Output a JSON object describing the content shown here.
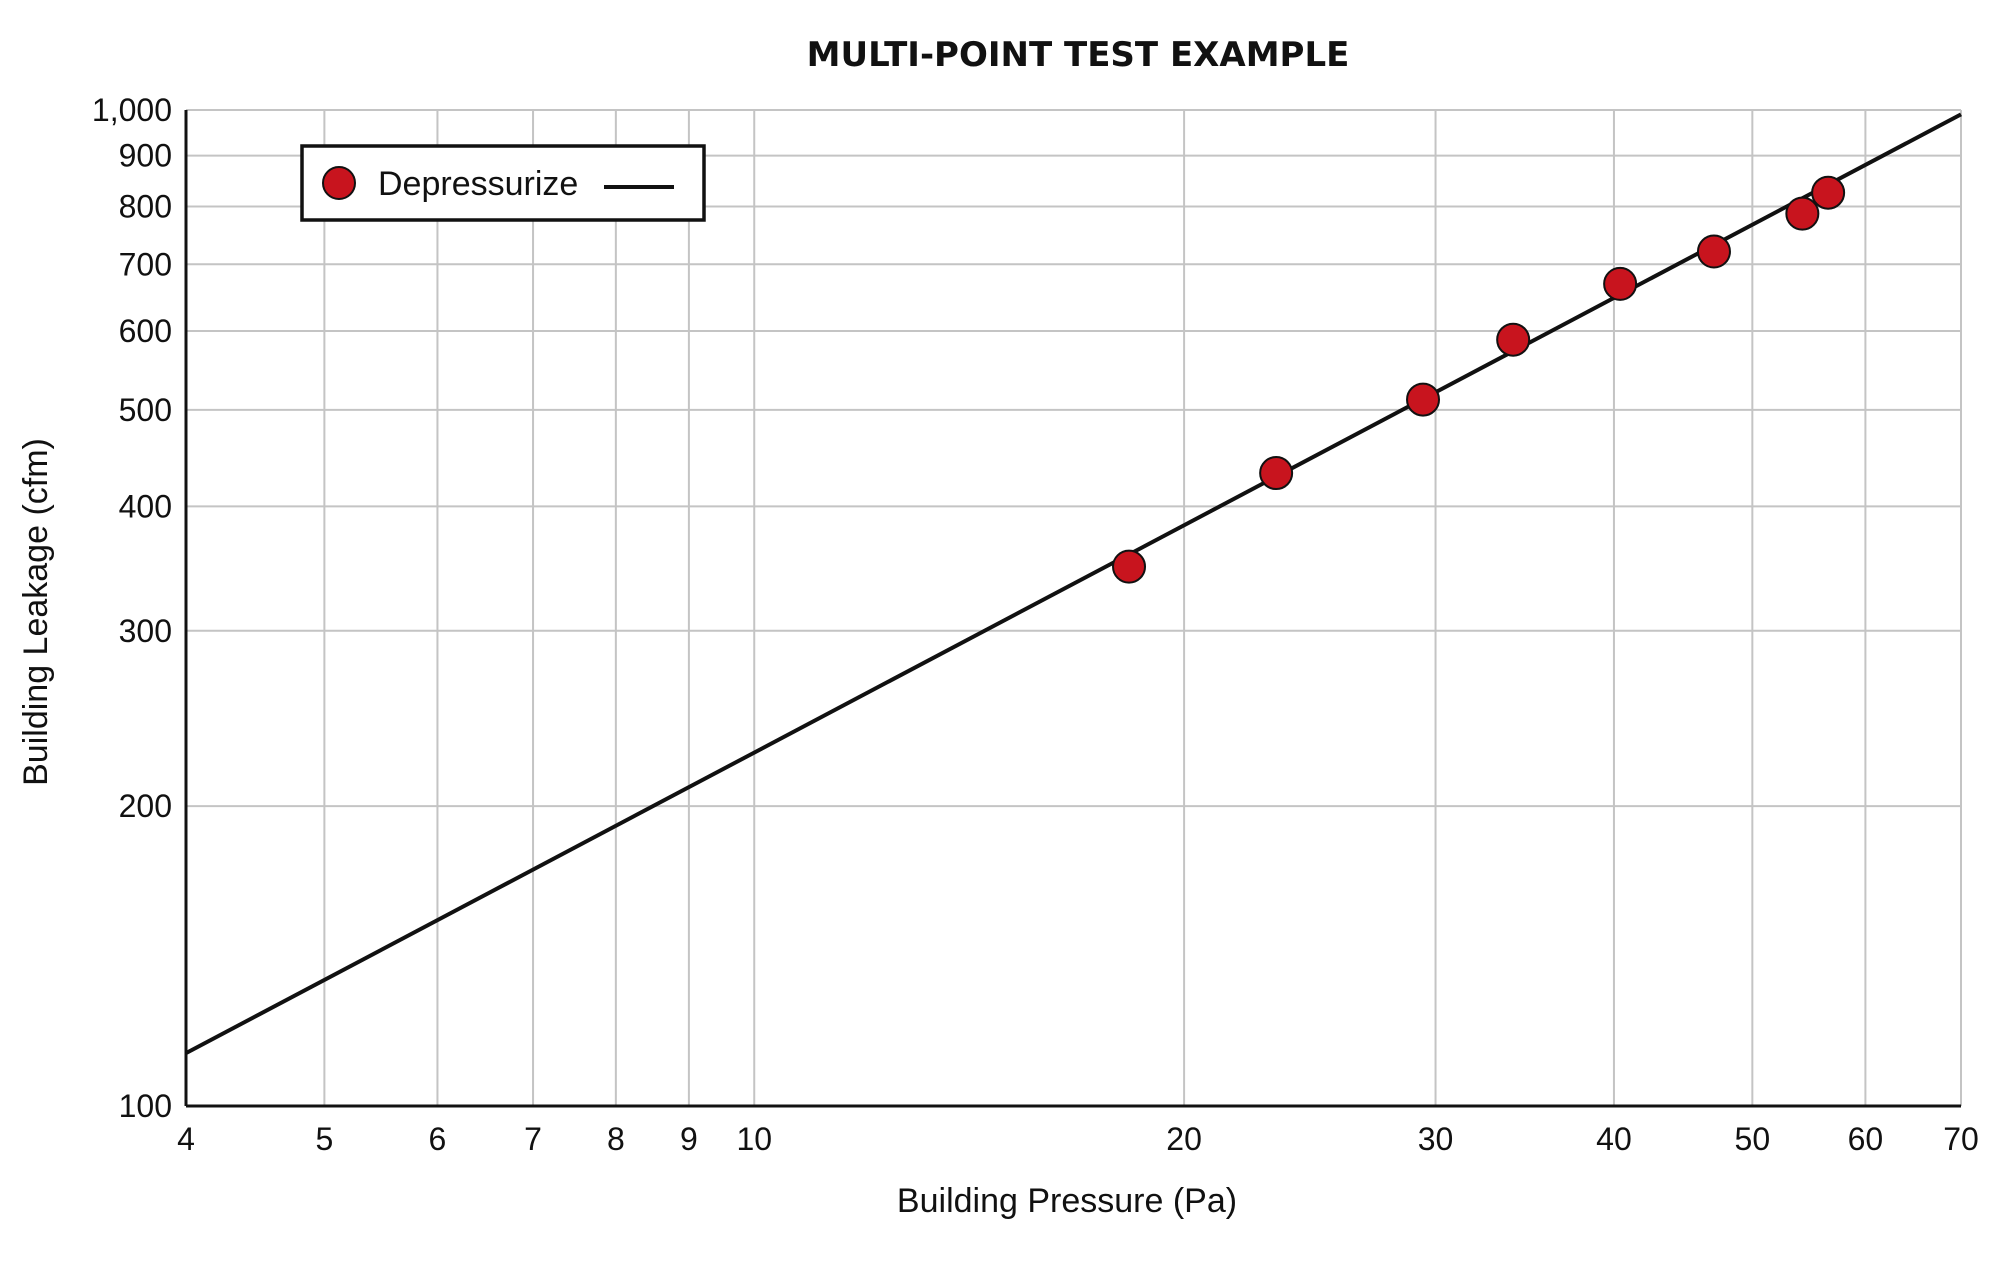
{
  "chart_data": {
    "type": "scatter",
    "title": "MULTI-POINT TEST EXAMPLE",
    "xlabel": "Building Pressure (Pa)",
    "ylabel": "Building Leakage (cfm)",
    "x_scale": "log",
    "y_scale": "log",
    "xlim": [
      4,
      70
    ],
    "ylim": [
      100,
      1000
    ],
    "x_ticks": [
      4,
      5,
      6,
      7,
      8,
      9,
      10,
      20,
      30,
      40,
      50,
      60,
      70
    ],
    "x_tick_labels": [
      "4",
      "5",
      "6",
      "7",
      "8",
      "9",
      "10",
      "20",
      "30",
      "40",
      "50",
      "60",
      "70"
    ],
    "y_ticks": [
      100,
      200,
      300,
      400,
      500,
      600,
      700,
      800,
      900,
      1000
    ],
    "y_tick_labels": [
      "100",
      "200",
      "300",
      "400",
      "500",
      "600",
      "700",
      "800",
      "900",
      "1,000"
    ],
    "grid": true,
    "legend_position": "top-left",
    "series": [
      {
        "name": "Depressurize",
        "color": "#c8141e",
        "x": [
          18.3,
          23.2,
          29.4,
          34.0,
          40.4,
          47.0,
          54.2,
          56.5
        ],
        "y": [
          348,
          432,
          512,
          588,
          669,
          721,
          787,
          826
        ]
      }
    ],
    "fit_line": {
      "color": "#111111",
      "x": [
        4,
        70
      ],
      "y": [
        113,
        990
      ]
    }
  }
}
